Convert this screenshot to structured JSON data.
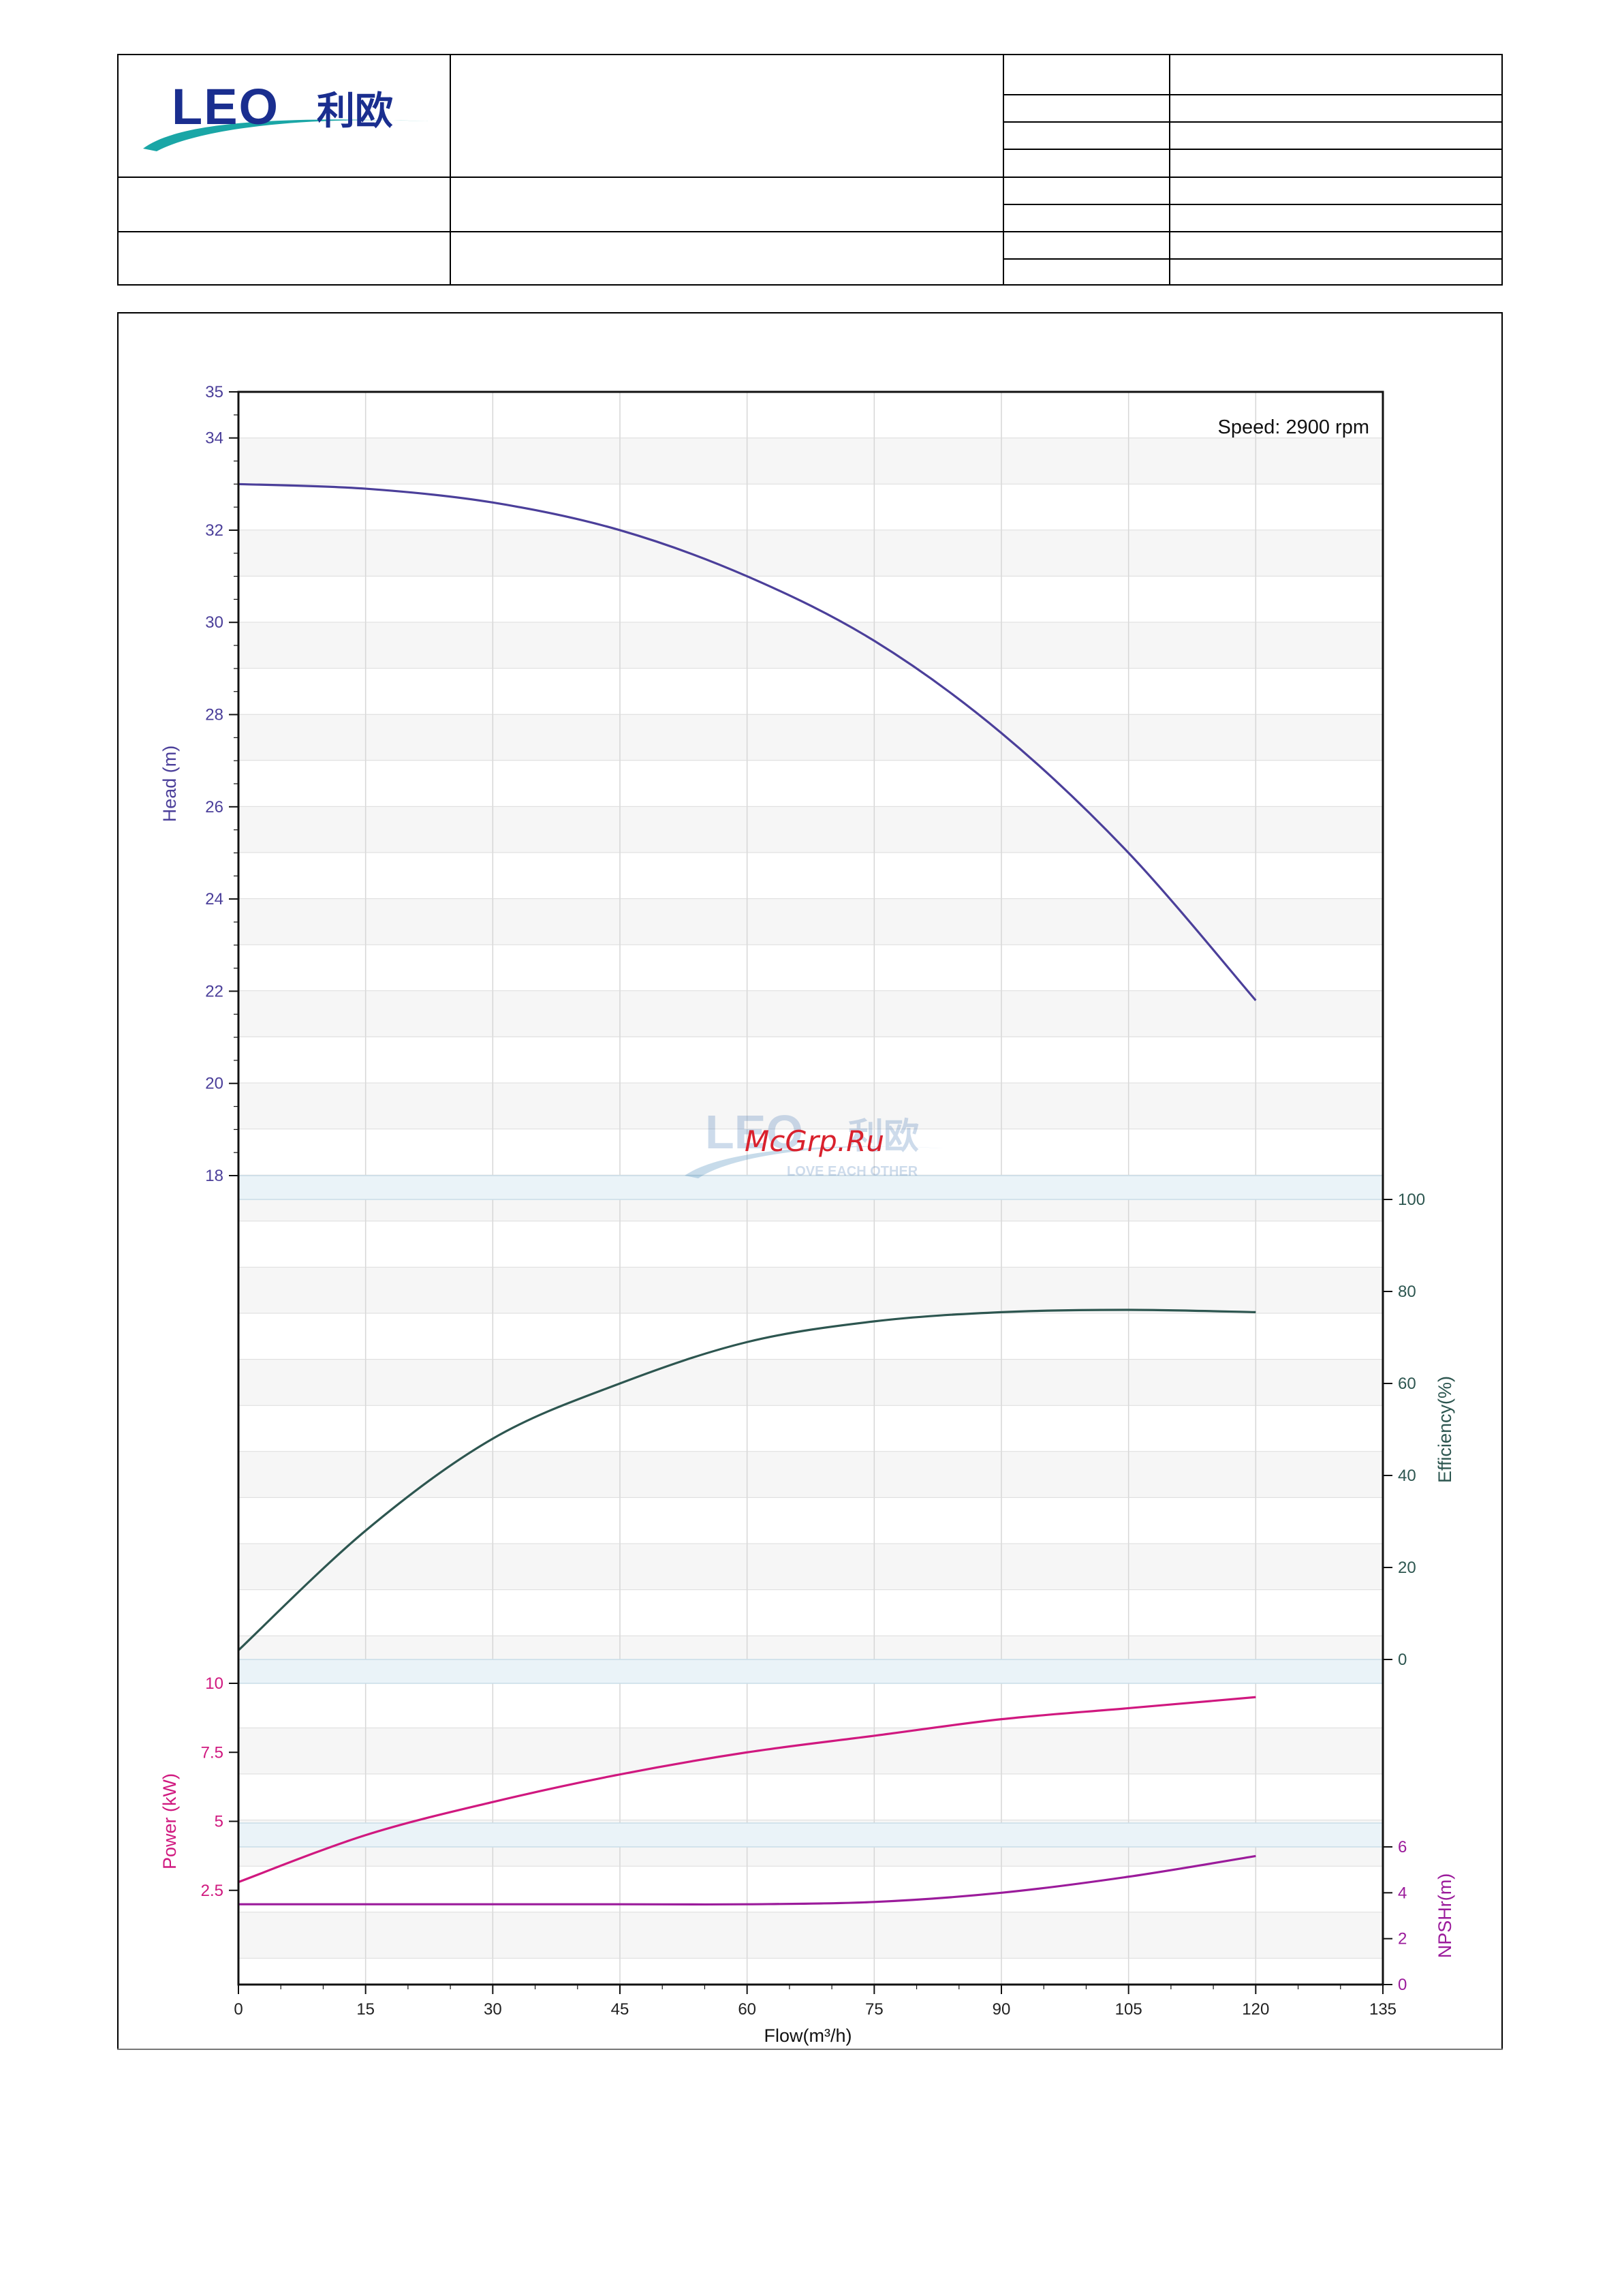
{
  "header": {
    "logo_text": "LEO",
    "logo_cn": "利欧"
  },
  "watermark": {
    "site": "McGrp.Ru",
    "logo_text": "LEO",
    "logo_cn": "利欧",
    "slogan": "LOVE EACH OTHER"
  },
  "colors": {
    "head": "#4b3f9a",
    "efficiency": "#2d5650",
    "power": "#d0187f",
    "npsh": "#9b1b9b",
    "band": "#eaf3f8"
  },
  "chart_data": {
    "type": "line",
    "annotation": "Speed: 2900 rpm",
    "xlabel": "Flow(m³/h)",
    "xlim": [
      0,
      135
    ],
    "xticks": [
      "0",
      "15",
      "30",
      "45",
      "60",
      "75",
      "90",
      "105",
      "120",
      "135"
    ],
    "panels": [
      {
        "name": "head",
        "ylabel": "Head (m)",
        "ylim": [
          18,
          35
        ],
        "yticks": [
          "18",
          "20",
          "22",
          "24",
          "26",
          "28",
          "30",
          "32",
          "34",
          "35"
        ],
        "axis_side": "left",
        "series": [
          {
            "x": [
              0,
              15,
              30,
              45,
              60,
              75,
              90,
              105,
              120
            ],
            "y": [
              33.0,
              32.9,
              32.6,
              32.0,
              31.0,
              29.6,
              27.6,
              25.0,
              21.8
            ]
          }
        ]
      },
      {
        "name": "efficiency",
        "ylabel": "Efficiency(%)",
        "ylim": [
          0,
          100
        ],
        "yticks": [
          "0",
          "20",
          "40",
          "60",
          "80",
          "100"
        ],
        "axis_side": "right",
        "series": [
          {
            "x": [
              0,
              15,
              30,
              45,
              60,
              75,
              90,
              105,
              120
            ],
            "y": [
              2,
              28,
              48,
              60,
              69,
              73.5,
              75.5,
              76,
              75.5
            ]
          }
        ]
      },
      {
        "name": "power",
        "ylabel": "Power (kW)",
        "ylim": [
          0,
          10
        ],
        "yticks": [
          "2.5",
          "5",
          "7.5",
          "10"
        ],
        "axis_side": "left",
        "series": [
          {
            "x": [
              0,
              15,
              30,
              45,
              60,
              75,
              90,
              105,
              120
            ],
            "y": [
              2.8,
              4.5,
              5.7,
              6.7,
              7.5,
              8.1,
              8.7,
              9.1,
              9.5
            ]
          }
        ]
      },
      {
        "name": "npsh",
        "ylabel": "NPSHr(m)",
        "ylim": [
          0,
          6
        ],
        "yticks": [
          "0",
          "2",
          "4",
          "6"
        ],
        "axis_side": "right",
        "series": [
          {
            "x": [
              0,
              15,
              30,
              45,
              60,
              75,
              90,
              105,
              120
            ],
            "y": [
              3.5,
              3.5,
              3.5,
              3.5,
              3.5,
              3.6,
              4.0,
              4.7,
              5.6
            ]
          }
        ]
      }
    ]
  }
}
